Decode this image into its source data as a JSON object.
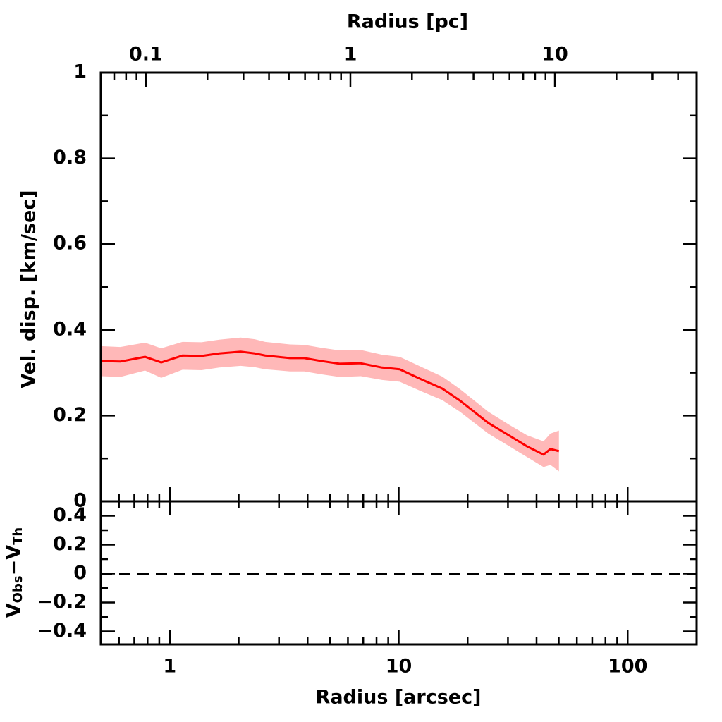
{
  "chart_data": [
    {
      "type": "line",
      "ylabel": "Vel. disp. [km/sec]",
      "x2label": "Radius [pc]",
      "xlog": true,
      "xlim": [
        0.5,
        200
      ],
      "xticks": [
        1,
        10,
        100
      ],
      "xminorticks": [
        0.5,
        0.6,
        0.7,
        0.8,
        0.9,
        2,
        3,
        4,
        5,
        6,
        7,
        8,
        9,
        20,
        30,
        40,
        50,
        60,
        70,
        80,
        90,
        200
      ],
      "x2lim": [
        0.0602,
        49.3
      ],
      "x2ticks": [
        0.1,
        1,
        10
      ],
      "x2minorticks": [
        0.07,
        0.08,
        0.09,
        0.2,
        0.3,
        0.4,
        0.5,
        0.6,
        0.7,
        0.8,
        0.9,
        2,
        3,
        4,
        5,
        6,
        7,
        8,
        9,
        20,
        30,
        40
      ],
      "ylim": [
        0,
        1
      ],
      "yticks": [
        0,
        0.2,
        0.4,
        0.6,
        0.8,
        1
      ],
      "yminorticks": [
        0.1,
        0.3,
        0.5,
        0.7,
        0.9
      ],
      "series": [
        {
          "color": "#ff0000",
          "band_color": "#ffb8b8",
          "x": [
            0.5,
            0.608,
            0.78,
            0.918,
            1.137,
            1.377,
            1.646,
            2.04,
            2.35,
            2.61,
            3.35,
            3.87,
            4.62,
            5.52,
            6.83,
            8.46,
            10.1,
            12.5,
            15.5,
            18.5,
            24.6,
            30.5,
            36.4,
            42.9,
            46.0,
            50.1
          ],
          "values": [
            0.327,
            0.326,
            0.337,
            0.324,
            0.34,
            0.339,
            0.345,
            0.349,
            0.345,
            0.34,
            0.334,
            0.334,
            0.327,
            0.321,
            0.322,
            0.312,
            0.308,
            0.285,
            0.263,
            0.235,
            0.183,
            0.153,
            0.128,
            0.109,
            0.122,
            0.117
          ],
          "lower": [
            0.292,
            0.29,
            0.305,
            0.288,
            0.307,
            0.306,
            0.312,
            0.316,
            0.313,
            0.308,
            0.303,
            0.303,
            0.296,
            0.29,
            0.292,
            0.283,
            0.279,
            0.257,
            0.236,
            0.209,
            0.158,
            0.128,
            0.103,
            0.08,
            0.085,
            0.07
          ],
          "upper": [
            0.362,
            0.36,
            0.37,
            0.357,
            0.372,
            0.371,
            0.377,
            0.382,
            0.378,
            0.372,
            0.366,
            0.365,
            0.358,
            0.352,
            0.353,
            0.342,
            0.337,
            0.314,
            0.291,
            0.262,
            0.209,
            0.178,
            0.154,
            0.14,
            0.158,
            0.165
          ]
        }
      ]
    },
    {
      "type": "residual",
      "xlabel": "Radius [arcsec]",
      "ylabel": [
        "V",
        "Obs",
        "−V",
        "Th"
      ],
      "xlog": true,
      "xlim": [
        0.5,
        200
      ],
      "xticks": [
        1,
        10,
        100
      ],
      "xminorticks": [
        0.5,
        0.6,
        0.7,
        0.8,
        0.9,
        2,
        3,
        4,
        5,
        6,
        7,
        8,
        9,
        20,
        30,
        40,
        50,
        60,
        70,
        80,
        90,
        200
      ],
      "ylim": [
        -0.49,
        0.5
      ],
      "yticks": [
        0.4,
        0.2,
        0,
        {
          "value": -0.2,
          "label": "−0.2"
        },
        {
          "value": -0.4,
          "label": "−0.4"
        }
      ],
      "yminorticks": [
        0.3,
        0.1,
        -0.1,
        -0.3
      ],
      "hline": 0,
      "hline_style": "dashed"
    }
  ]
}
